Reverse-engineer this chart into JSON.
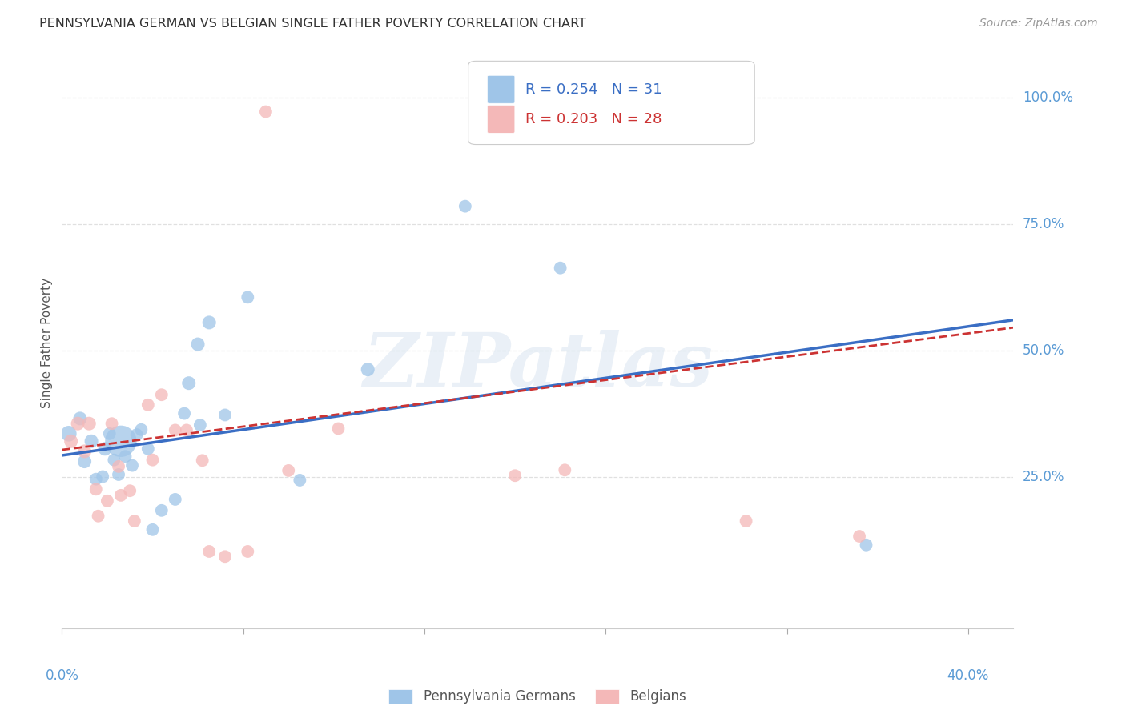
{
  "title": "PENNSYLVANIA GERMAN VS BELGIAN SINGLE FATHER POVERTY CORRELATION CHART",
  "source": "Source: ZipAtlas.com",
  "ylabel": "Single Father Poverty",
  "legend_label1": "Pennsylvania Germans",
  "legend_label2": "Belgians",
  "r1": 0.254,
  "n1": 31,
  "r2": 0.203,
  "n2": 28,
  "color1": "#9fc5e8",
  "color2": "#f4b8b8",
  "line_color1": "#3a6ec4",
  "line_color2": "#cc3333",
  "xlim": [
    0.0,
    0.42
  ],
  "ylim": [
    -0.05,
    1.08
  ],
  "right_yticks": [
    0.25,
    0.5,
    0.75,
    1.0
  ],
  "right_yticklabels": [
    "25.0%",
    "50.0%",
    "75.0%",
    "100.0%"
  ],
  "pa_german_x": [
    0.003,
    0.008,
    0.01,
    0.013,
    0.015,
    0.018,
    0.019,
    0.021,
    0.023,
    0.025,
    0.026,
    0.028,
    0.031,
    0.033,
    0.035,
    0.038,
    0.04,
    0.044,
    0.05,
    0.054,
    0.056,
    0.06,
    0.061,
    0.065,
    0.072,
    0.082,
    0.105,
    0.135,
    0.178,
    0.22,
    0.355
  ],
  "pa_german_y": [
    0.335,
    0.365,
    0.28,
    0.32,
    0.245,
    0.25,
    0.305,
    0.335,
    0.283,
    0.254,
    0.32,
    0.29,
    0.272,
    0.333,
    0.343,
    0.305,
    0.145,
    0.183,
    0.205,
    0.375,
    0.435,
    0.512,
    0.352,
    0.555,
    0.372,
    0.605,
    0.243,
    0.462,
    0.785,
    0.663,
    0.115
  ],
  "pa_german_size": [
    200,
    150,
    150,
    150,
    130,
    130,
    150,
    130,
    130,
    130,
    800,
    130,
    130,
    130,
    130,
    130,
    130,
    130,
    130,
    130,
    150,
    150,
    130,
    150,
    130,
    130,
    130,
    150,
    130,
    130,
    130
  ],
  "belgian_x": [
    0.004,
    0.007,
    0.01,
    0.012,
    0.015,
    0.016,
    0.02,
    0.022,
    0.025,
    0.026,
    0.03,
    0.032,
    0.038,
    0.04,
    0.044,
    0.05,
    0.055,
    0.062,
    0.065,
    0.072,
    0.082,
    0.09,
    0.1,
    0.122,
    0.2,
    0.222,
    0.302,
    0.352
  ],
  "belgian_y": [
    0.32,
    0.355,
    0.3,
    0.355,
    0.225,
    0.172,
    0.202,
    0.355,
    0.27,
    0.213,
    0.222,
    0.162,
    0.392,
    0.283,
    0.412,
    0.342,
    0.342,
    0.282,
    0.102,
    0.092,
    0.102,
    0.972,
    0.262,
    0.345,
    0.252,
    0.263,
    0.162,
    0.132
  ],
  "belgian_size": [
    150,
    150,
    150,
    150,
    130,
    130,
    130,
    130,
    130,
    130,
    130,
    130,
    130,
    130,
    130,
    130,
    130,
    130,
    130,
    130,
    130,
    130,
    130,
    130,
    130,
    130,
    130,
    130
  ],
  "trend1_x": [
    0.0,
    0.42
  ],
  "trend1_y": [
    0.292,
    0.56
  ],
  "trend2_x": [
    0.0,
    0.42
  ],
  "trend2_y": [
    0.303,
    0.545
  ],
  "bg_color": "#ffffff",
  "grid_color": "#e0e0e0",
  "axis_label_color": "#5b9bd5",
  "title_color": "#333333",
  "watermark": "ZIPatlas"
}
